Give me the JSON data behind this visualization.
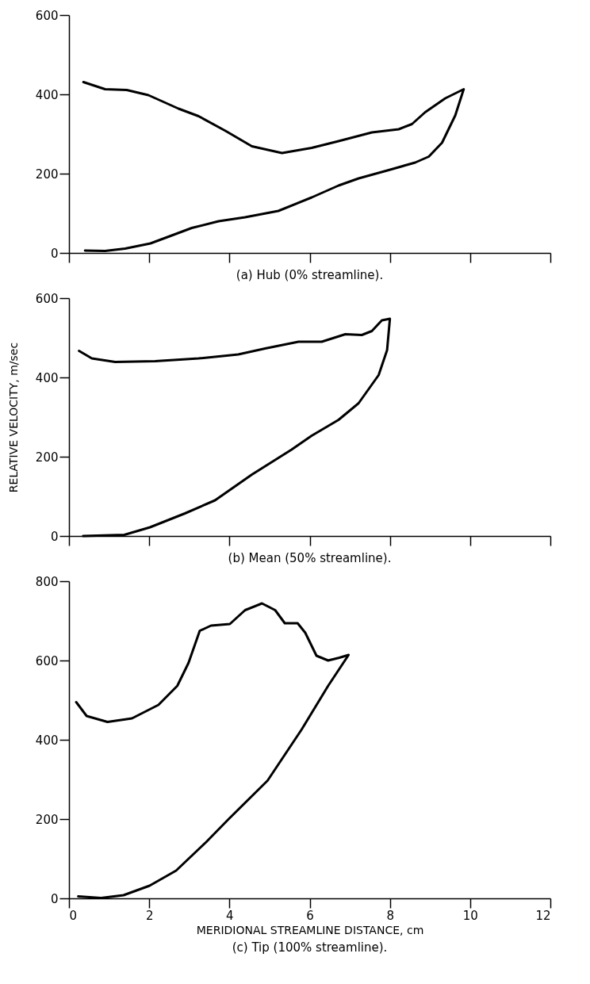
{
  "chart_data": [
    {
      "type": "line",
      "title": "(a) Hub (0% streamline).",
      "xlim": [
        0,
        12
      ],
      "xticks": [
        0,
        2,
        4,
        6,
        8,
        10,
        12
      ],
      "ylim": [
        0,
        600
      ],
      "yticks": [
        0,
        200,
        400,
        600
      ],
      "tick_labels": "y",
      "x": [
        0.36,
        0.9,
        1.44,
        1.98,
        2.73,
        3.23,
        3.9,
        4.56,
        5.31,
        6.05,
        6.72,
        7.55,
        8.22,
        8.55,
        8.88,
        9.38,
        9.84,
        9.63,
        9.3,
        8.97,
        8.63,
        7.97,
        7.22,
        6.72,
        6.05,
        5.22,
        4.39,
        3.73,
        3.06,
        2.56,
        2.03,
        1.4,
        0.9,
        0.4
      ],
      "series": [
        {
          "color": "#000000",
          "values": [
            431,
            413,
            411,
            398,
            364,
            345,
            308,
            269,
            252,
            265,
            282,
            304,
            312,
            325,
            355,
            390,
            413,
            347,
            278,
            243,
            228,
            209,
            188,
            170,
            140,
            106,
            90,
            80,
            63,
            44,
            24,
            11,
            5,
            6
          ]
        }
      ]
    },
    {
      "type": "line",
      "title": "(b) Mean (50% streamline).",
      "ylabel": "RELATIVE VELOCITY, m/sec",
      "xlim": [
        0,
        12
      ],
      "xticks": [
        0,
        2,
        4,
        6,
        8,
        10,
        12
      ],
      "ylim": [
        0,
        600
      ],
      "yticks": [
        0,
        200,
        400,
        600
      ],
      "tick_labels": "y",
      "x": [
        0.25,
        0.57,
        1.15,
        2.15,
        3.23,
        4.22,
        4.89,
        5.72,
        6.3,
        6.89,
        7.3,
        7.55,
        7.8,
        8.0,
        7.93,
        7.72,
        7.22,
        6.72,
        6.05,
        5.55,
        4.56,
        3.64,
        2.89,
        2.02,
        1.38,
        0.35
      ],
      "series": [
        {
          "color": "#000000",
          "values": [
            467,
            448,
            439,
            441,
            448,
            458,
            473,
            490,
            490,
            509,
            507,
            517,
            544,
            548,
            469,
            406,
            335,
            293,
            253,
            218,
            155,
            90,
            57,
            22,
            3,
            0
          ]
        }
      ]
    },
    {
      "type": "line",
      "title": "(c) Tip (100% streamline).",
      "xlabel": "MERIDIONAL STREAMLINE DISTANCE, cm",
      "xlim": [
        0,
        12
      ],
      "xticks": [
        0,
        2,
        4,
        6,
        8,
        10,
        12
      ],
      "ylim": [
        0,
        800
      ],
      "yticks": [
        0,
        200,
        400,
        600,
        800
      ],
      "x": [
        0.18,
        0.44,
        0.96,
        1.57,
        2.23,
        2.7,
        2.98,
        3.26,
        3.54,
        4.01,
        4.39,
        4.81,
        5.14,
        5.38,
        5.7,
        5.89,
        6.17,
        6.46,
        6.74,
        6.97,
        6.46,
        5.8,
        4.95,
        3.98,
        3.42,
        2.67,
        2.01,
        1.36,
        0.8,
        0.23
      ],
      "series": [
        {
          "color": "#000000",
          "values": [
            495,
            460,
            445,
            454,
            488,
            536,
            594,
            675,
            688,
            692,
            727,
            744,
            727,
            694,
            694,
            670,
            612,
            600,
            607,
            614,
            536,
            426,
            297,
            200,
            142,
            70,
            32,
            8,
            1,
            5
          ]
        }
      ]
    }
  ]
}
